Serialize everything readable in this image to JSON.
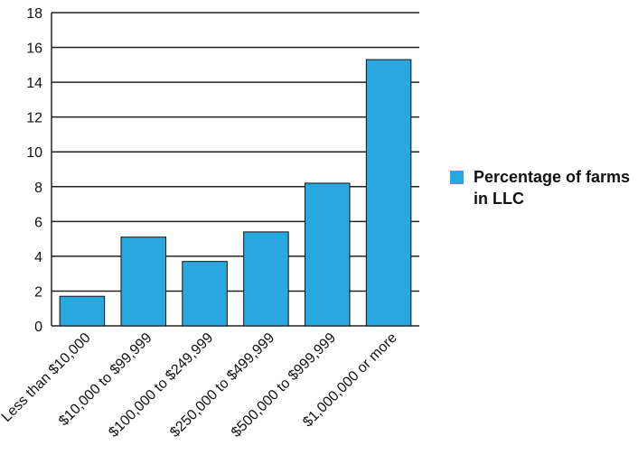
{
  "chart_data": {
    "type": "bar",
    "categories": [
      "Less than $10,000",
      "$10,000 to $99,999",
      "$100,000 to $249,999",
      "$250,000 to $499,999",
      "$500,000 to $999,999",
      "$1,000,000 or more"
    ],
    "series": [
      {
        "name": "Percentage of farms in LLC",
        "values": [
          1.7,
          5.1,
          3.7,
          5.4,
          8.2,
          15.3
        ],
        "color": "#29a8e0"
      }
    ],
    "title": "",
    "xlabel": "",
    "ylabel": "",
    "ylim": [
      0,
      18
    ],
    "yticks": [
      "0",
      "2",
      "4",
      "6",
      "8",
      "10",
      "12",
      "14",
      "16",
      "18"
    ],
    "grid": true,
    "legend": {
      "position": "right",
      "lines": [
        "Percentage of farms",
        "in LLC"
      ]
    }
  }
}
